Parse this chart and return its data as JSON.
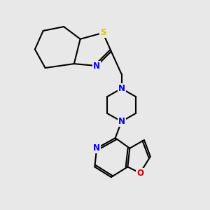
{
  "bg_color": "#e8e8e8",
  "bond_color": "#000000",
  "N_color": "#0000ff",
  "S_color": "#cccc00",
  "O_color": "#cc0000",
  "line_width": 1.5,
  "figsize": [
    3.0,
    3.0
  ],
  "dpi": 100,
  "xlim": [
    0,
    10
  ],
  "ylim": [
    0,
    10
  ]
}
